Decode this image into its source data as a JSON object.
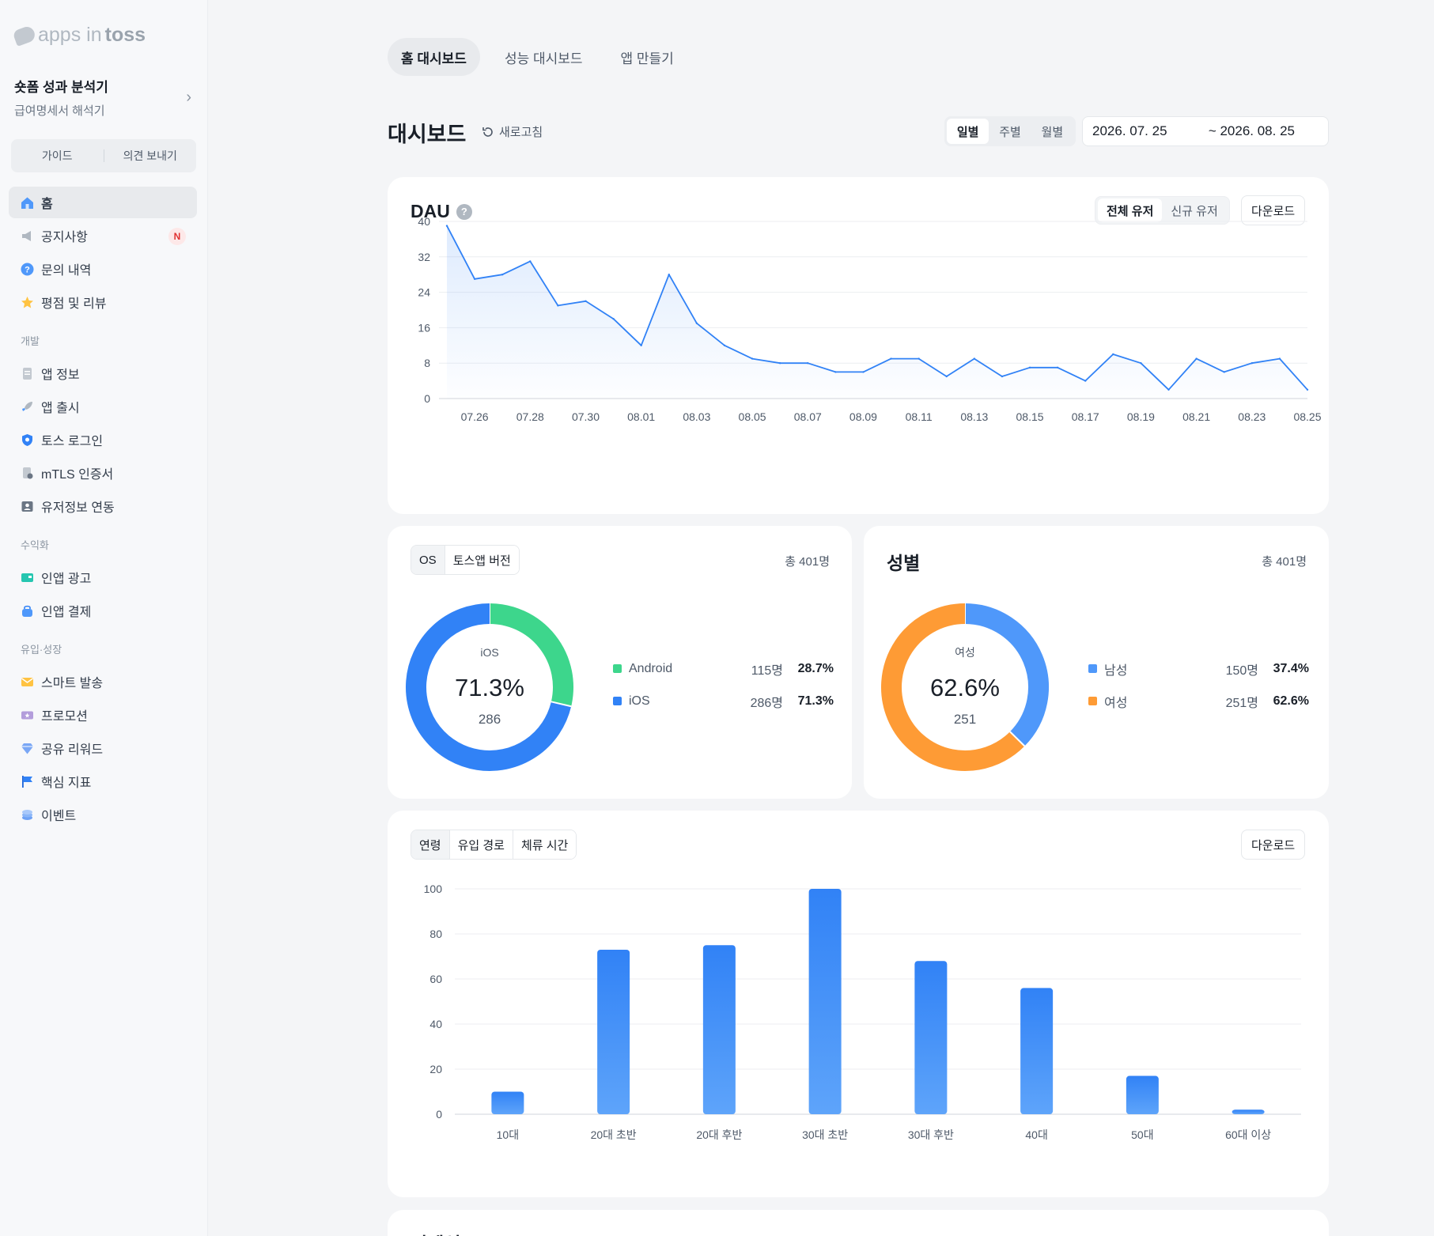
{
  "sidebar": {
    "logo_apps": "apps in",
    "logo_toss": "toss",
    "app_name": "숏폼 성과 분석기",
    "app_sub": "급여명세서 해석기",
    "guide": "가이드",
    "feedback": "의견 보내기",
    "items": [
      {
        "label": "홈",
        "icon": "home-icon"
      },
      {
        "label": "공지사항",
        "icon": "megaphone-icon",
        "badge": "N"
      },
      {
        "label": "문의 내역",
        "icon": "question-icon"
      },
      {
        "label": "평점 및 리뷰",
        "icon": "star-icon"
      }
    ],
    "sections": [
      {
        "title": "개발",
        "items": [
          {
            "label": "앱 정보",
            "icon": "document-icon"
          },
          {
            "label": "앱 출시",
            "icon": "rocket-icon"
          },
          {
            "label": "토스 로그인",
            "icon": "shield-icon"
          },
          {
            "label": "mTLS 인증서",
            "icon": "certificate-icon"
          },
          {
            "label": "유저정보 연동",
            "icon": "user-card-icon"
          }
        ]
      },
      {
        "title": "수익화",
        "items": [
          {
            "label": "인앱 광고",
            "icon": "ad-icon"
          },
          {
            "label": "인앱 결제",
            "icon": "bag-icon"
          }
        ]
      },
      {
        "title": "유입·성장",
        "items": [
          {
            "label": "스마트 발송",
            "icon": "mail-icon"
          },
          {
            "label": "프로모션",
            "icon": "ticket-icon"
          },
          {
            "label": "공유 리워드",
            "icon": "diamond-icon"
          },
          {
            "label": "핵심 지표",
            "icon": "flag-icon"
          },
          {
            "label": "이벤트",
            "icon": "coins-icon"
          }
        ]
      }
    ]
  },
  "top_tabs": [
    "홈 대시보드",
    "성능 대시보드",
    "앱 만들기"
  ],
  "header": {
    "title": "대시보드",
    "refresh": "새로고침",
    "period": [
      "일별",
      "주별",
      "월별"
    ],
    "date_from": "2026. 07. 25",
    "date_to": "~ 2026. 08. 25"
  },
  "dau": {
    "title": "DAU",
    "segments": [
      "전체 유저",
      "신규 유저"
    ],
    "download": "다운로드"
  },
  "os_card": {
    "tabs": [
      "OS",
      "토스앱 버전"
    ],
    "total": "총 401명",
    "center_label": "iOS",
    "center_pct": "71.3%",
    "center_count": "286",
    "legend": [
      {
        "name": "Android",
        "count": "115명",
        "pct": "28.7%",
        "color": "#3dd68c"
      },
      {
        "name": "iOS",
        "count": "286명",
        "pct": "71.3%",
        "color": "#3182f6"
      }
    ]
  },
  "gender_card": {
    "title": "성별",
    "total": "총 401명",
    "center_label": "여성",
    "center_pct": "62.6%",
    "center_count": "251",
    "legend": [
      {
        "name": "남성",
        "count": "150명",
        "pct": "37.4%",
        "color": "#4f98fa"
      },
      {
        "name": "여성",
        "count": "251명",
        "pct": "62.6%",
        "color": "#fe9b35"
      }
    ]
  },
  "age_card": {
    "tabs": [
      "연령",
      "유입 경로",
      "체류 시간"
    ],
    "download": "다운로드"
  },
  "bottom_card": {
    "title": "리텐션"
  },
  "chart_data": [
    {
      "type": "area",
      "title": "DAU",
      "x": [
        "07.25",
        "07.26",
        "07.27",
        "07.28",
        "07.29",
        "07.30",
        "07.31",
        "08.01",
        "08.02",
        "08.03",
        "08.04",
        "08.05",
        "08.06",
        "08.07",
        "08.08",
        "08.09",
        "08.10",
        "08.11",
        "08.12",
        "08.13",
        "08.14",
        "08.15",
        "08.16",
        "08.17",
        "08.18",
        "08.19",
        "08.20",
        "08.21",
        "08.22",
        "08.23",
        "08.24",
        "08.25"
      ],
      "x_ticks": [
        "07.26",
        "07.28",
        "07.30",
        "08.01",
        "08.03",
        "08.05",
        "08.07",
        "08.09",
        "08.11",
        "08.13",
        "08.15",
        "08.17",
        "08.19",
        "08.21",
        "08.23",
        "08.25"
      ],
      "values": [
        39,
        27,
        28,
        31,
        21,
        22,
        18,
        12,
        28,
        17,
        12,
        9,
        8,
        8,
        6,
        6,
        9,
        9,
        5,
        9,
        5,
        7,
        7,
        4,
        10,
        8,
        2,
        9,
        6,
        8,
        9,
        2
      ],
      "ylim": [
        0,
        40
      ],
      "y_ticks": [
        0,
        8,
        16,
        24,
        32,
        40
      ],
      "color": "#3182f6",
      "grid": true
    },
    {
      "type": "pie",
      "title": "OS",
      "categories": [
        "Android",
        "iOS"
      ],
      "values": [
        115,
        286
      ],
      "colors": [
        "#3dd68c",
        "#3182f6"
      ]
    },
    {
      "type": "pie",
      "title": "성별",
      "categories": [
        "남성",
        "여성"
      ],
      "values": [
        150,
        251
      ],
      "colors": [
        "#4f98fa",
        "#fe9b35"
      ]
    },
    {
      "type": "bar",
      "title": "연령",
      "categories": [
        "10대",
        "20대 초반",
        "20대 후반",
        "30대 초반",
        "30대 후반",
        "40대",
        "50대",
        "60대 이상"
      ],
      "values": [
        10,
        73,
        75,
        100,
        68,
        56,
        17,
        2
      ],
      "ylim": [
        0,
        100
      ],
      "y_ticks": [
        0,
        20,
        40,
        60,
        80,
        100
      ],
      "color": "#3182f6",
      "grid": true
    }
  ]
}
